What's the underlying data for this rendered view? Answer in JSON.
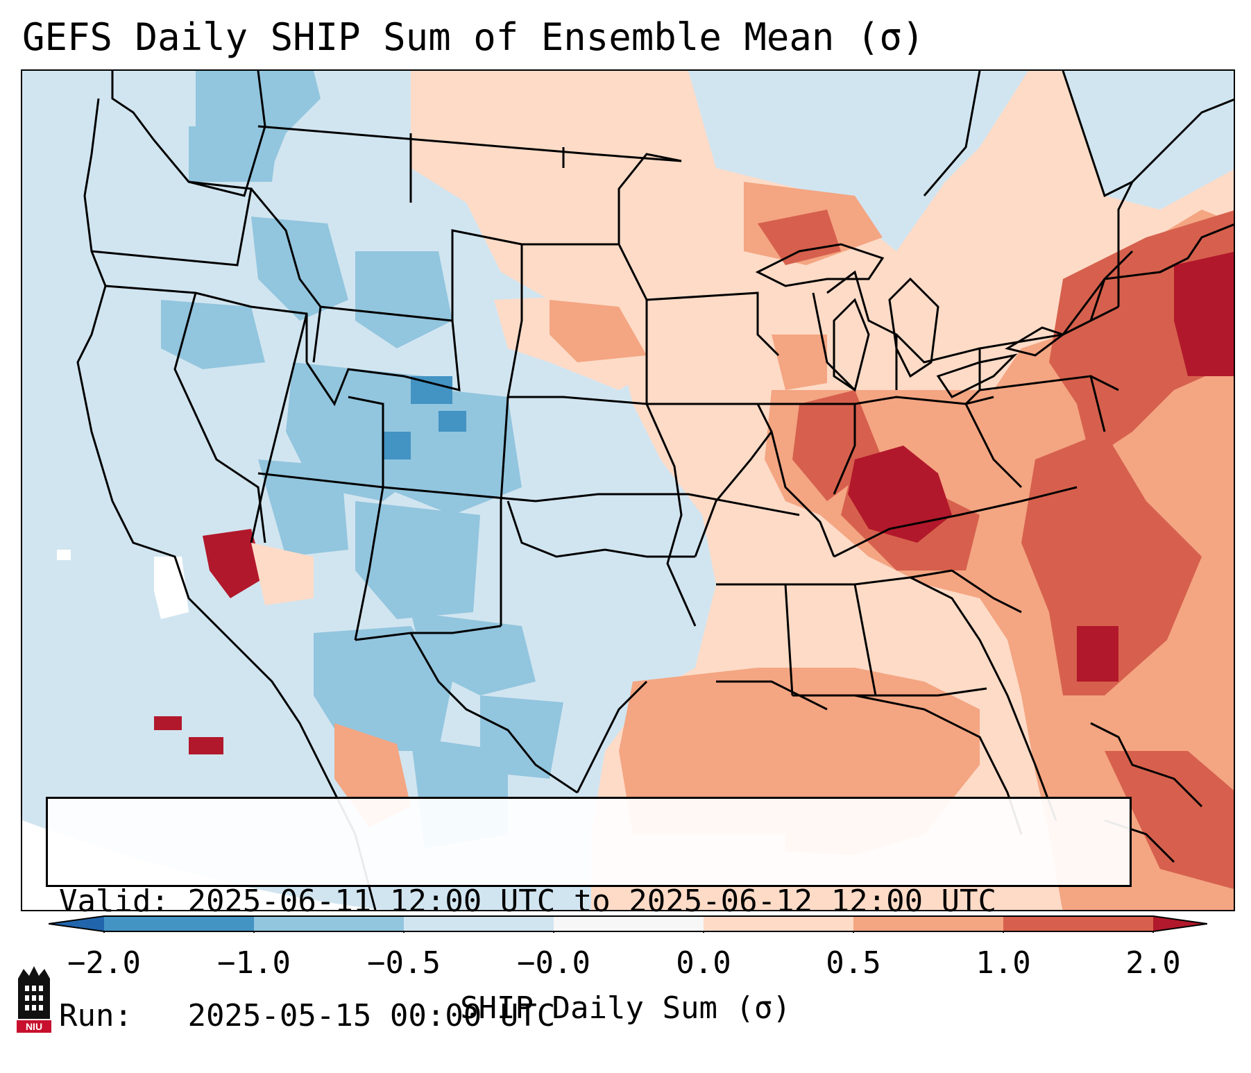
{
  "title": "GEFS Daily SHIP Sum of Ensemble Mean (σ)",
  "info": {
    "valid_label": "Valid:",
    "valid_value": "2025-06-11 12:00 UTC to 2025-06-12 12:00 UTC",
    "run_label": "Run:",
    "run_value": "2025-05-15 00:00 UTC"
  },
  "colorbar": {
    "label": "SHIP Daily Sum (σ)",
    "ticks": [
      "−2.0",
      "−1.0",
      "−0.5",
      "−0.0",
      "0.0",
      "0.5",
      "1.0",
      "2.0"
    ],
    "colors": [
      "#4393c3",
      "#92c5de",
      "#d1e5f0",
      "#f7f7f7",
      "#fddbc7",
      "#f4a582",
      "#d6604d"
    ],
    "under_color": "#2166ac",
    "over_color": "#b2182b"
  },
  "map_colors": {
    "strong_neg": "#4393c3",
    "neg": "#92c5de",
    "weak_neg": "#d1e5f0",
    "neutral": "#f7f7f7",
    "weak_pos": "#fddbc7",
    "pos": "#f4a582",
    "strong_pos": "#d6604d",
    "extreme_pos": "#b2182b"
  },
  "logo": {
    "text": "NIU",
    "icon": "niu-tower-icon"
  }
}
